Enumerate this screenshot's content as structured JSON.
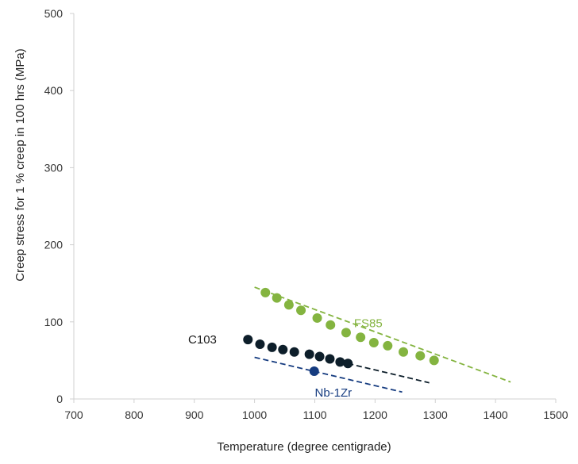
{
  "chart_data": {
    "type": "scatter",
    "title": "",
    "xlabel": "Temperature (degree centigrade)",
    "ylabel": "Creep stress for 1 % creep in 100 hrs (MPa)",
    "xlim": [
      700,
      1500
    ],
    "ylim": [
      0,
      500
    ],
    "xticks": [
      "700",
      "800",
      "900",
      "1000",
      "1100",
      "1200",
      "1300",
      "1400",
      "1500"
    ],
    "yticks": [
      "0",
      "100",
      "200",
      "300",
      "400",
      "500"
    ],
    "grid": false,
    "legend": "none",
    "series": [
      {
        "name": "FS85",
        "color": "#84b440",
        "points": [
          [
            1018,
            138
          ],
          [
            1037,
            131
          ],
          [
            1057,
            122
          ],
          [
            1077,
            115
          ],
          [
            1104,
            105
          ],
          [
            1126,
            96
          ],
          [
            1152,
            86
          ],
          [
            1176,
            80
          ],
          [
            1198,
            73
          ],
          [
            1221,
            69
          ],
          [
            1247,
            61
          ],
          [
            1275,
            56
          ],
          [
            1298,
            50
          ]
        ],
        "trend": [
          [
            1000,
            145
          ],
          [
            1425,
            22
          ]
        ],
        "label_at": [
          1165,
          98
        ]
      },
      {
        "name": "C103",
        "color": "#0d1e2a",
        "points": [
          [
            989,
            77
          ],
          [
            1009,
            71
          ],
          [
            1029,
            67
          ],
          [
            1047,
            64
          ],
          [
            1066,
            61
          ],
          [
            1091,
            58
          ],
          [
            1108,
            55
          ],
          [
            1125,
            52
          ],
          [
            1142,
            48
          ],
          [
            1155,
            46
          ]
        ],
        "trend": [
          [
            1155,
            46
          ],
          [
            1290,
            21
          ]
        ],
        "label_at": [
          945,
          77
        ]
      },
      {
        "name": "Nb-1Zr",
        "color": "#163c80",
        "points": [
          [
            1099,
            36
          ]
        ],
        "trend": [
          [
            1000,
            54
          ],
          [
            1245,
            9
          ]
        ],
        "label_at": [
          1100,
          8
        ]
      }
    ]
  }
}
